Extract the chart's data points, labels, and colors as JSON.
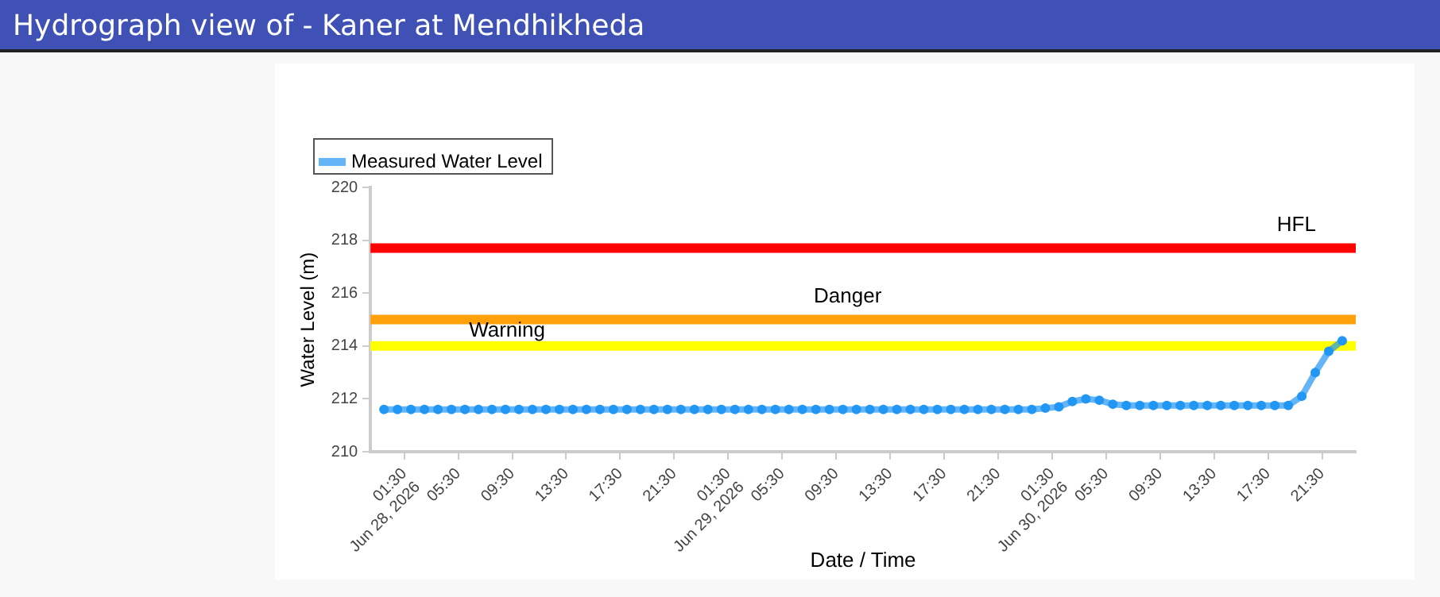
{
  "chart_data": {
    "type": "line",
    "title": "Hydrograph view of - Kaner at Mendhikheda",
    "xlabel": "Date / Time",
    "ylabel": "Water Level (m)",
    "x": [
      "2026-06-28T00:00",
      "2026-06-28T01:00",
      "2026-06-28T02:00",
      "2026-06-28T03:00",
      "2026-06-28T04:00",
      "2026-06-28T05:00",
      "2026-06-28T06:00",
      "2026-06-28T07:00",
      "2026-06-28T08:00",
      "2026-06-28T09:00",
      "2026-06-28T10:00",
      "2026-06-28T11:00",
      "2026-06-28T12:00",
      "2026-06-28T13:00",
      "2026-06-28T14:00",
      "2026-06-28T15:00",
      "2026-06-28T16:00",
      "2026-06-28T17:00",
      "2026-06-28T18:00",
      "2026-06-28T19:00",
      "2026-06-28T20:00",
      "2026-06-28T21:00",
      "2026-06-28T22:00",
      "2026-06-28T23:00",
      "2026-06-29T00:00",
      "2026-06-29T01:00",
      "2026-06-29T02:00",
      "2026-06-29T03:00",
      "2026-06-29T04:00",
      "2026-06-29T05:00",
      "2026-06-29T06:00",
      "2026-06-29T07:00",
      "2026-06-29T08:00",
      "2026-06-29T09:00",
      "2026-06-29T10:00",
      "2026-06-29T11:00",
      "2026-06-29T12:00",
      "2026-06-29T13:00",
      "2026-06-29T14:00",
      "2026-06-29T15:00",
      "2026-06-29T16:00",
      "2026-06-29T17:00",
      "2026-06-29T18:00",
      "2026-06-29T19:00",
      "2026-06-29T20:00",
      "2026-06-29T21:00",
      "2026-06-29T22:00",
      "2026-06-29T23:00",
      "2026-06-30T00:00",
      "2026-06-30T01:00",
      "2026-06-30T02:00",
      "2026-06-30T03:00",
      "2026-06-30T04:00",
      "2026-06-30T05:00",
      "2026-06-30T06:00",
      "2026-06-30T07:00",
      "2026-06-30T08:00",
      "2026-06-30T09:00",
      "2026-06-30T10:00",
      "2026-06-30T11:00",
      "2026-06-30T12:00",
      "2026-06-30T13:00",
      "2026-06-30T14:00",
      "2026-06-30T15:00",
      "2026-06-30T16:00",
      "2026-06-30T17:00",
      "2026-06-30T18:00",
      "2026-06-30T19:00",
      "2026-06-30T20:00",
      "2026-06-30T21:00",
      "2026-06-30T22:00",
      "2026-06-30T23:00"
    ],
    "series": [
      {
        "name": "Measured Water Level",
        "color": "#2196f3",
        "values": [
          211.6,
          211.6,
          211.6,
          211.6,
          211.6,
          211.6,
          211.6,
          211.6,
          211.6,
          211.6,
          211.6,
          211.6,
          211.6,
          211.6,
          211.6,
          211.6,
          211.6,
          211.6,
          211.6,
          211.6,
          211.6,
          211.6,
          211.6,
          211.6,
          211.6,
          211.6,
          211.6,
          211.6,
          211.6,
          211.6,
          211.6,
          211.6,
          211.6,
          211.6,
          211.6,
          211.6,
          211.6,
          211.6,
          211.6,
          211.6,
          211.6,
          211.6,
          211.6,
          211.6,
          211.6,
          211.6,
          211.6,
          211.6,
          211.6,
          211.65,
          211.7,
          211.9,
          212.0,
          211.95,
          211.8,
          211.75,
          211.75,
          211.75,
          211.75,
          211.75,
          211.75,
          211.75,
          211.75,
          211.75,
          211.75,
          211.75,
          211.75,
          211.75,
          212.1,
          213.0,
          213.8,
          214.2
        ]
      }
    ],
    "xlim": [
      "2026-06-27T23:00",
      "2026-07-01T00:00"
    ],
    "xticks": [
      {
        "value": "2026-06-28T01:30",
        "label": "01:30\nJun 28, 2026"
      },
      {
        "value": "2026-06-28T05:30",
        "label": "05:30"
      },
      {
        "value": "2026-06-28T09:30",
        "label": "09:30"
      },
      {
        "value": "2026-06-28T13:30",
        "label": "13:30"
      },
      {
        "value": "2026-06-28T17:30",
        "label": "17:30"
      },
      {
        "value": "2026-06-28T21:30",
        "label": "21:30"
      },
      {
        "value": "2026-06-29T01:30",
        "label": "01:30\nJun 29, 2026"
      },
      {
        "value": "2026-06-29T05:30",
        "label": "05:30"
      },
      {
        "value": "2026-06-29T09:30",
        "label": "09:30"
      },
      {
        "value": "2026-06-29T13:30",
        "label": "13:30"
      },
      {
        "value": "2026-06-29T17:30",
        "label": "17:30"
      },
      {
        "value": "2026-06-29T21:30",
        "label": "21:30"
      },
      {
        "value": "2026-06-30T01:30",
        "label": "01:30\nJun 30, 2026"
      },
      {
        "value": "2026-06-30T05:30",
        "label": "05:30"
      },
      {
        "value": "2026-06-30T09:30",
        "label": "09:30"
      },
      {
        "value": "2026-06-30T13:30",
        "label": "13:30"
      },
      {
        "value": "2026-06-30T17:30",
        "label": "17:30"
      },
      {
        "value": "2026-06-30T21:30",
        "label": "21:30"
      }
    ],
    "ylim": [
      210,
      220
    ],
    "yticks": [
      210,
      212,
      214,
      216,
      218,
      220
    ],
    "ref_lines": [
      {
        "axis": "y",
        "value": 217.7,
        "label": "HFL",
        "color": "#ff0000"
      },
      {
        "axis": "y",
        "value": 215,
        "label": "Danger",
        "color": "#ffa10a"
      },
      {
        "axis": "y",
        "value": 214,
        "label": "Warning",
        "color": "#ffff00"
      }
    ],
    "grid": false,
    "legend": "top left",
    "marker": "circle",
    "line_style": "solid"
  }
}
